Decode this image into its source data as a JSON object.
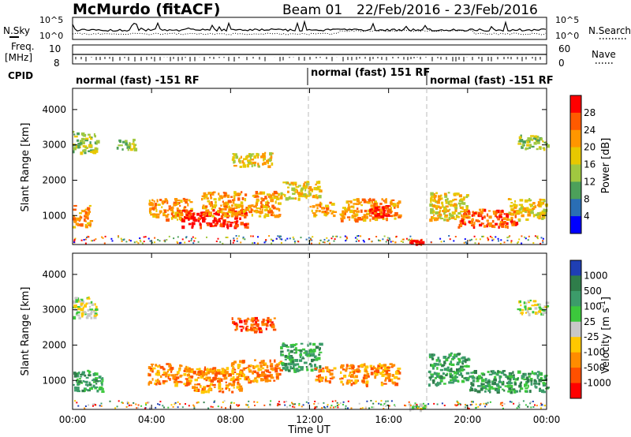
{
  "header": {
    "station": "McMurdo (fitACF)",
    "beam": "Beam 01",
    "date_range": "22/Feb/2016 - 23/Feb/2016"
  },
  "noise_panel": {
    "left_label": "N.Sky",
    "right_label": "N.Search",
    "left_ticks": [
      "10^5",
      "10^0"
    ],
    "right_ticks": [
      "10^5",
      "10^0"
    ]
  },
  "freq_panel": {
    "left_label_lines": [
      "Freq.",
      "[MHz]"
    ],
    "left_ticks": [
      "10",
      "8"
    ],
    "right_label": "Nave",
    "right_ticks": [
      "60",
      "0"
    ]
  },
  "cpid_panel": {
    "label": "CPID",
    "segments": [
      {
        "start": 0,
        "end": 12,
        "label": "normal (fast) -151 RF"
      },
      {
        "start": 12,
        "end": 18,
        "label": "normal (fast) 151 RF"
      },
      {
        "start": 18,
        "end": 24,
        "label": "normal (fast) -151 RF"
      }
    ]
  },
  "chart_data": [
    {
      "type": "heatmap",
      "name": "power",
      "ylabel": "Slant Range [km]",
      "ylim": [
        180,
        4600
      ],
      "yticks": [
        1000,
        2000,
        3000,
        4000
      ],
      "xlim": [
        0,
        24
      ],
      "colorbar": {
        "label": "Power [dB]",
        "ticks": [
          "28",
          "24",
          "20",
          "16",
          "12",
          "8",
          "4"
        ],
        "colors": [
          "#ff0000",
          "#ff5a00",
          "#ff9600",
          "#e8c800",
          "#a0c840",
          "#4ca05a",
          "#2a6eb4",
          "#0000ff"
        ]
      },
      "echo_regions": [
        {
          "x0": 0.0,
          "x1": 1.2,
          "y0": 2800,
          "y1": 3400,
          "level": 3
        },
        {
          "x0": 0.0,
          "x1": 0.9,
          "y0": 700,
          "y1": 1300,
          "level": 5
        },
        {
          "x0": 2.2,
          "x1": 3.2,
          "y0": 2900,
          "y1": 3200,
          "level": 3
        },
        {
          "x0": 3.8,
          "x1": 6.0,
          "y0": 900,
          "y1": 1500,
          "level": 5
        },
        {
          "x0": 5.5,
          "x1": 8.8,
          "y0": 700,
          "y1": 1200,
          "level": 7
        },
        {
          "x0": 6.5,
          "x1": 10.5,
          "y0": 1000,
          "y1": 1700,
          "level": 5
        },
        {
          "x0": 8.0,
          "x1": 10.2,
          "y0": 2400,
          "y1": 2800,
          "level": 4
        },
        {
          "x0": 10.5,
          "x1": 12.5,
          "y0": 1500,
          "y1": 2000,
          "level": 4
        },
        {
          "x0": 12.0,
          "x1": 13.2,
          "y0": 1000,
          "y1": 1400,
          "level": 5
        },
        {
          "x0": 13.5,
          "x1": 16.5,
          "y0": 900,
          "y1": 1500,
          "level": 5
        },
        {
          "x0": 15.0,
          "x1": 16.2,
          "y0": 1000,
          "y1": 1300,
          "level": 7
        },
        {
          "x0": 17.0,
          "x1": 17.8,
          "y0": 200,
          "y1": 350,
          "level": 7
        },
        {
          "x0": 18.0,
          "x1": 20.0,
          "y0": 900,
          "y1": 1700,
          "level": 4
        },
        {
          "x0": 19.5,
          "x1": 22.5,
          "y0": 700,
          "y1": 1200,
          "level": 6
        },
        {
          "x0": 22.0,
          "x1": 24.0,
          "y0": 900,
          "y1": 1500,
          "level": 4
        },
        {
          "x0": 22.5,
          "x1": 24.0,
          "y0": 2900,
          "y1": 3300,
          "level": 3
        }
      ]
    },
    {
      "type": "heatmap",
      "name": "velocity",
      "ylabel": "Slant Range [km]",
      "xlabel": "Time UT",
      "ylim": [
        180,
        4600
      ],
      "yticks": [
        1000,
        2000,
        3000,
        4000
      ],
      "xlim": [
        0,
        24
      ],
      "xticks": [
        "00:00",
        "04:00",
        "08:00",
        "12:00",
        "16:00",
        "20:00",
        "00:00"
      ],
      "colorbar": {
        "label_main": "Velocity [m s",
        "label_sup": "-1",
        "label_end": "]",
        "ticks": [
          "1000",
          "500",
          "100",
          "25",
          "-25",
          "-100",
          "-500",
          "-1000"
        ],
        "colors": [
          "#1f3fb4",
          "#2f7d4a",
          "#3c9c6a",
          "#3cc83c",
          "#c8c8c8",
          "#ffc800",
          "#ff8c00",
          "#ff5000",
          "#ff0000"
        ]
      },
      "echo_regions": [
        {
          "x0": 0.0,
          "x1": 1.2,
          "y0": 2800,
          "y1": 3400,
          "level": 4
        },
        {
          "x0": 0.0,
          "x1": 1.5,
          "y0": 700,
          "y1": 1300,
          "level": 6
        },
        {
          "x0": 3.8,
          "x1": 6.0,
          "y0": 900,
          "y1": 1500,
          "level": 2
        },
        {
          "x0": 6.0,
          "x1": 8.5,
          "y0": 700,
          "y1": 1400,
          "level": 2
        },
        {
          "x0": 8.0,
          "x1": 10.5,
          "y0": 1000,
          "y1": 1600,
          "level": 2
        },
        {
          "x0": 8.0,
          "x1": 10.2,
          "y0": 2400,
          "y1": 2800,
          "level": 1
        },
        {
          "x0": 10.5,
          "x1": 12.5,
          "y0": 1300,
          "y1": 2100,
          "level": 6
        },
        {
          "x0": 12.2,
          "x1": 13.2,
          "y0": 1000,
          "y1": 1400,
          "level": 2
        },
        {
          "x0": 13.5,
          "x1": 16.5,
          "y0": 900,
          "y1": 1500,
          "level": 2
        },
        {
          "x0": 17.0,
          "x1": 17.8,
          "y0": 200,
          "y1": 350,
          "level": 4
        },
        {
          "x0": 18.0,
          "x1": 20.0,
          "y0": 900,
          "y1": 1800,
          "level": 6
        },
        {
          "x0": 20.0,
          "x1": 24.0,
          "y0": 700,
          "y1": 1300,
          "level": 6
        },
        {
          "x0": 22.5,
          "x1": 24.0,
          "y0": 2900,
          "y1": 3300,
          "level": 4
        }
      ]
    }
  ]
}
